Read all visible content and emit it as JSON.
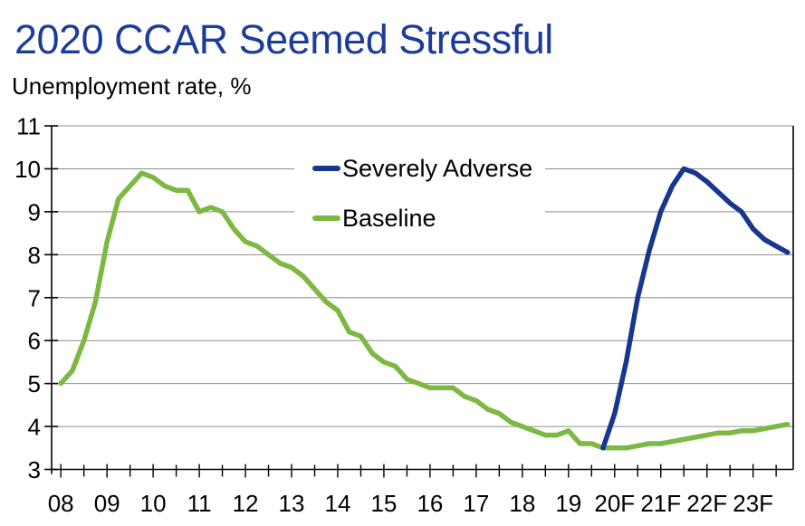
{
  "page": {
    "title": "2020 CCAR Seemed Stressful",
    "subtitle": "Unemployment rate, %"
  },
  "colors": {
    "title": "#1d3c99",
    "severely_adverse": "#17378f",
    "baseline": "#7cb842",
    "gridline": "#8c8c8c",
    "axis": "#000000",
    "tick_label": "#000000",
    "background": "#ffffff"
  },
  "chart_data": {
    "type": "line",
    "title": "2020 CCAR Seemed Stressful",
    "subtitle": "Unemployment rate, %",
    "ylabel": "Unemployment rate, %",
    "grid": "horizontal",
    "legend_position": "inside-top-center",
    "x_axis": {
      "domain": [
        2007.8,
        2023.87
      ],
      "tick_years": [
        2008,
        2009,
        2010,
        2011,
        2012,
        2013,
        2014,
        2015,
        2016,
        2017,
        2018,
        2019,
        2020,
        2021,
        2022,
        2023
      ],
      "tick_labels": [
        "08",
        "09",
        "10",
        "11",
        "12",
        "13",
        "14",
        "15",
        "16",
        "17",
        "18",
        "19",
        "20F",
        "21F",
        "22F",
        "23F"
      ],
      "minor_tick_step": 0.5
    },
    "y_axis": {
      "domain": [
        3,
        11
      ],
      "ticks": [
        3,
        4,
        5,
        6,
        7,
        8,
        9,
        10,
        11
      ],
      "tick_labels": [
        "3",
        "4",
        "5",
        "6",
        "7",
        "8",
        "9",
        "10",
        "11"
      ]
    },
    "series": [
      {
        "name": "Severely Adverse",
        "color": "#17378f",
        "start": "2019Q4",
        "start_t": 2019.75,
        "step_years": 0.25,
        "values": [
          3.5,
          4.3,
          5.5,
          7.0,
          8.1,
          9.0,
          9.6,
          10.0,
          9.9,
          9.7,
          9.45,
          9.2,
          9.0,
          8.6,
          8.35,
          8.2,
          8.05
        ]
      },
      {
        "name": "Baseline",
        "color": "#7cb842",
        "start": "2008Q1",
        "start_t": 2008.0,
        "step_years": 0.25,
        "values": [
          5.0,
          5.3,
          6.0,
          6.9,
          8.3,
          9.3,
          9.6,
          9.9,
          9.8,
          9.6,
          9.5,
          9.5,
          9.0,
          9.1,
          9.0,
          8.6,
          8.3,
          8.2,
          8.0,
          7.8,
          7.7,
          7.5,
          7.2,
          6.9,
          6.7,
          6.2,
          6.1,
          5.7,
          5.5,
          5.4,
          5.1,
          5.0,
          4.9,
          4.9,
          4.9,
          4.7,
          4.6,
          4.4,
          4.3,
          4.1,
          4.0,
          3.9,
          3.8,
          3.8,
          3.9,
          3.6,
          3.6,
          3.5,
          3.5,
          3.5,
          3.55,
          3.6,
          3.6,
          3.65,
          3.7,
          3.75,
          3.8,
          3.85,
          3.85,
          3.9,
          3.9,
          3.95,
          4.0,
          4.05
        ]
      }
    ]
  }
}
